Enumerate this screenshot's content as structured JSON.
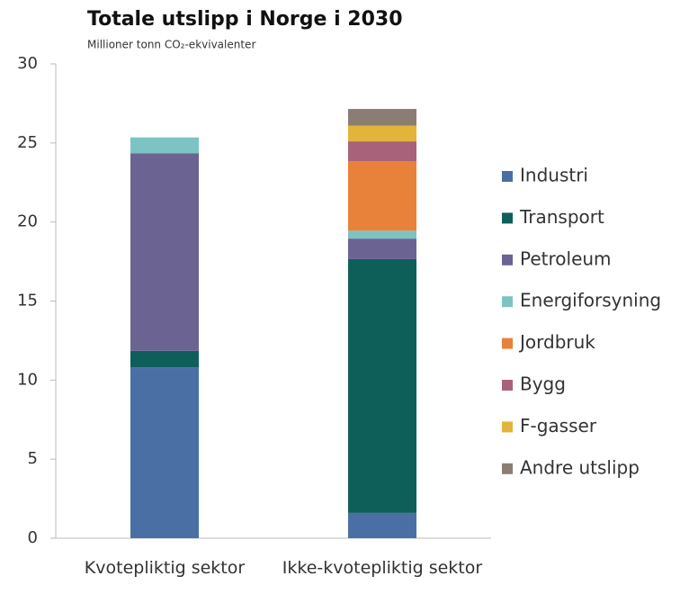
{
  "chart_data": {
    "type": "stacked_bar",
    "title": "Totale utslipp i Norge i 2030",
    "subtitle": "Millioner tonn CO₂-ekvivalenter",
    "categories": [
      "Kvotepliktig sektor",
      "Ikke-kvotepliktig sektor"
    ],
    "series": [
      {
        "name": "Industri",
        "color": "#4a6fa5",
        "values": [
          10.8,
          1.6
        ]
      },
      {
        "name": "Transport",
        "color": "#0e5f5a",
        "values": [
          1.05,
          16.05
        ]
      },
      {
        "name": "Petroleum",
        "color": "#6b6392",
        "values": [
          12.5,
          1.3
        ]
      },
      {
        "name": "Energiforsyning",
        "color": "#7dc3c3",
        "values": [
          1.0,
          0.5
        ]
      },
      {
        "name": "Jordbruk",
        "color": "#e8813a",
        "values": [
          0,
          4.4
        ]
      },
      {
        "name": "Bygg",
        "color": "#a8627a",
        "values": [
          0,
          1.25
        ]
      },
      {
        "name": "F-gasser",
        "color": "#e3b43a",
        "values": [
          0,
          1.0
        ]
      },
      {
        "name": "Andre utslipp",
        "color": "#8c7d74",
        "values": [
          0,
          1.05
        ]
      }
    ],
    "ylim": [
      0,
      30
    ],
    "yticks": [
      0,
      5,
      10,
      15,
      20,
      25,
      30
    ],
    "grid": false,
    "legend": "right"
  }
}
